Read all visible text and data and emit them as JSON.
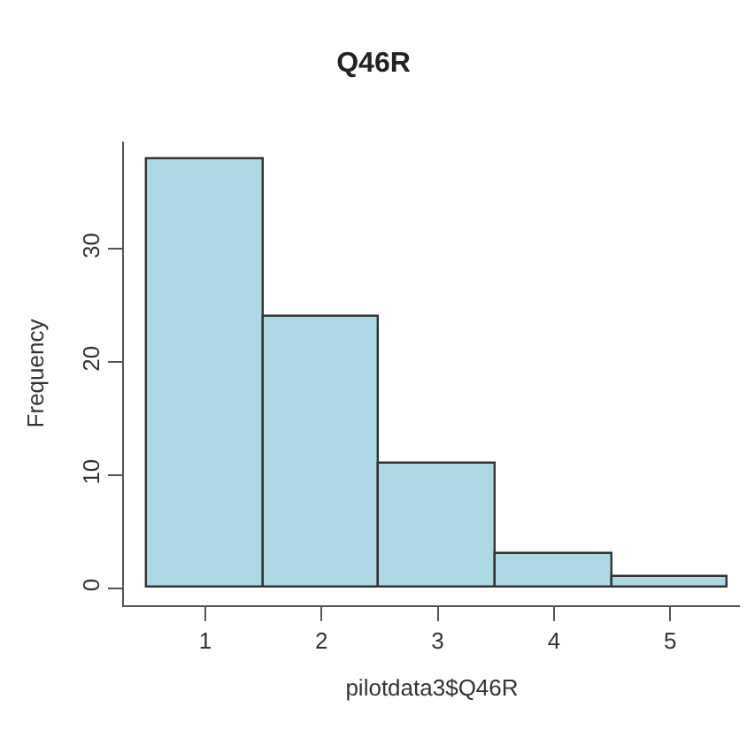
{
  "chart_data": {
    "type": "histogram",
    "title": "Q46R",
    "xlabel": "pilotdata3$Q46R",
    "ylabel": "Frequency",
    "bins": [
      0.5,
      1.5,
      2.5,
      3.5,
      4.5,
      5.5
    ],
    "values": [
      38,
      24,
      11,
      3,
      1
    ],
    "color": "#add8e6",
    "xlim": [
      0.3,
      5.6
    ],
    "ylim": [
      -1.5,
      39.5
    ],
    "xticks": [
      1,
      2,
      3,
      4,
      5
    ],
    "yticks": [
      0,
      10,
      20,
      30
    ]
  }
}
